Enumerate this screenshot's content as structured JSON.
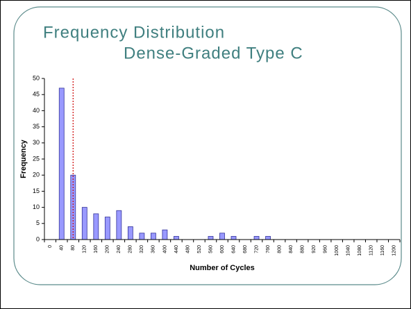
{
  "chart_data": {
    "type": "bar",
    "title": "Frequency Distribution",
    "subtitle": "Dense-Graded Type C",
    "x_label": "Number of Cycles",
    "y_label": "Frequency",
    "categories": [
      "0",
      "40",
      "80",
      "120",
      "160",
      "200",
      "240",
      "280",
      "320",
      "360",
      "400",
      "440",
      "480",
      "520",
      "560",
      "600",
      "640",
      "680",
      "720",
      "760",
      "800",
      "840",
      "880",
      "920",
      "960",
      "1000",
      "1040",
      "1080",
      "1120",
      "1160",
      "1200"
    ],
    "values": [
      0,
      47,
      20,
      10,
      8,
      7,
      9,
      4,
      2,
      2,
      3,
      1,
      0,
      0,
      1,
      2,
      1,
      0,
      1,
      1,
      0,
      0,
      0,
      0,
      0,
      0,
      0,
      0,
      0,
      0,
      0
    ],
    "color": "#9999ff",
    "reference_category": "80",
    "reference_color": "#cc0000",
    "ylim": [
      0,
      50
    ],
    "yticks": [
      0,
      5,
      10,
      15,
      20,
      25,
      30,
      35,
      40,
      45,
      50
    ]
  }
}
